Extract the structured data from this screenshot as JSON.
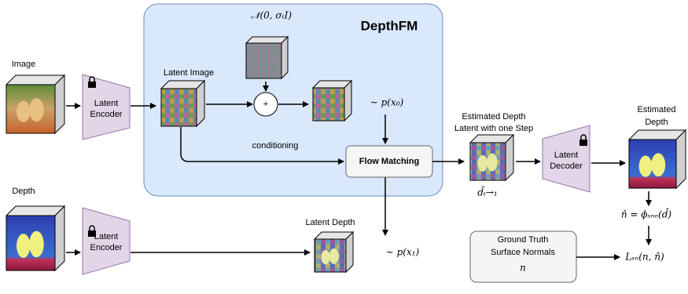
{
  "title": "DepthFM",
  "noise": "𝒩(0, σₜI)",
  "inputs": {
    "image": "Image",
    "depth": "Depth"
  },
  "encoders": [
    [
      "Latent",
      "Encoder"
    ],
    [
      "Latent",
      "Encoder"
    ]
  ],
  "decoder": [
    "Latent",
    "Decoder"
  ],
  "latent_image": "Latent Image",
  "plus": "+",
  "prior": "∼ p(x₀)",
  "conditioning": "conditioning",
  "flow_matching": "Flow Matching",
  "estimated_latent": {
    "label": [
      "Estimated Depth",
      "Latent with one Step"
    ],
    "symbol": "d̂ₜ→₁"
  },
  "estimated_depth": [
    "Estimated",
    "Depth"
  ],
  "normal_eq": "n̂ = ϕₛₙₑ(d̂)",
  "latent_depth": "Latent Depth",
  "target": "∼ p(x₁)",
  "ground_truth": {
    "label": [
      "Ground Truth",
      "Surface Normals"
    ],
    "symbol": "n"
  },
  "loss": "Lₛₙ(n, n̂)"
}
